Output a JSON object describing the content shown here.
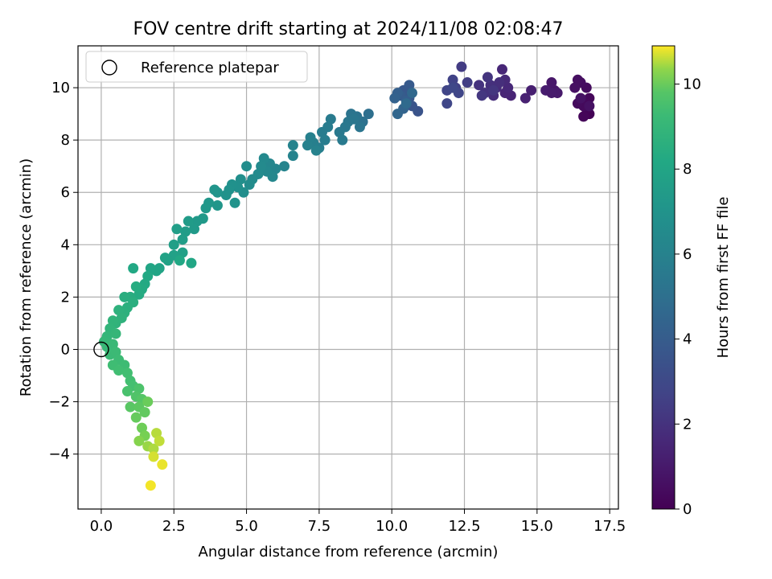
{
  "chart_data": {
    "type": "scatter",
    "title": "FOV centre drift starting at 2024/11/08 02:08:47",
    "xlabel": "Angular distance from reference (arcmin)",
    "ylabel": "Rotation from reference (arcmin)",
    "colorbar_label": "Hours from first FF file",
    "xlim": [
      -0.8,
      17.8
    ],
    "ylim": [
      -6.1,
      11.6
    ],
    "x_ticks": [
      0.0,
      2.5,
      5.0,
      7.5,
      10.0,
      12.5,
      15.0,
      17.5
    ],
    "x_tick_labels": [
      "0.0",
      "2.5",
      "5.0",
      "7.5",
      "10.0",
      "12.5",
      "15.0",
      "17.5"
    ],
    "y_ticks": [
      -4,
      -2,
      0,
      2,
      4,
      6,
      8,
      10
    ],
    "y_tick_labels": [
      "−4",
      "−2",
      "0",
      "2",
      "4",
      "6",
      "8",
      "10"
    ],
    "colorbar_range": [
      0,
      10.9
    ],
    "colorbar_ticks": [
      0,
      2,
      4,
      6,
      8,
      10
    ],
    "colorbar_tick_labels": [
      "0",
      "2",
      "4",
      "6",
      "8",
      "10"
    ],
    "colormap": "viridis",
    "grid": true,
    "legend": {
      "placement": "upper-left",
      "entries": [
        "Reference platepar"
      ]
    },
    "reference_point": {
      "x": 0,
      "y": 0
    },
    "points": [
      [
        16.8,
        9.0,
        0.1
      ],
      [
        16.7,
        9.2,
        0.15
      ],
      [
        16.6,
        8.9,
        0.2
      ],
      [
        16.8,
        9.6,
        0.25
      ],
      [
        16.7,
        9.4,
        0.3
      ],
      [
        16.6,
        9.3,
        0.35
      ],
      [
        16.4,
        9.4,
        0.4
      ],
      [
        16.7,
        10.0,
        0.45
      ],
      [
        16.5,
        10.2,
        0.5
      ],
      [
        16.4,
        10.3,
        0.55
      ],
      [
        16.3,
        10.0,
        0.6
      ],
      [
        16.5,
        9.6,
        0.7
      ],
      [
        16.8,
        9.3,
        0.65
      ],
      [
        15.6,
        9.9,
        0.8
      ],
      [
        15.5,
        10.2,
        0.9
      ],
      [
        15.7,
        9.8,
        1.0
      ],
      [
        15.3,
        9.9,
        1.1
      ],
      [
        15.5,
        9.8,
        1.05
      ],
      [
        14.8,
        9.9,
        1.2
      ],
      [
        14.6,
        9.6,
        1.3
      ],
      [
        14.1,
        9.7,
        1.4
      ],
      [
        13.9,
        9.8,
        1.5
      ],
      [
        14.0,
        10.0,
        1.6
      ],
      [
        13.8,
        10.7,
        1.55
      ],
      [
        13.9,
        10.3,
        1.65
      ],
      [
        13.6,
        10.0,
        1.7
      ],
      [
        13.5,
        9.7,
        1.8
      ],
      [
        13.7,
        10.2,
        1.85
      ],
      [
        13.4,
        10.1,
        1.9
      ],
      [
        13.2,
        9.8,
        2.0
      ],
      [
        13.0,
        10.1,
        2.05
      ],
      [
        13.3,
        10.4,
        2.1
      ],
      [
        13.5,
        9.9,
        2.15
      ],
      [
        13.1,
        9.7,
        2.2
      ],
      [
        12.4,
        10.8,
        2.4
      ],
      [
        12.6,
        10.2,
        2.5
      ],
      [
        12.2,
        10.0,
        2.6
      ],
      [
        12.1,
        10.3,
        2.7
      ],
      [
        11.9,
        9.9,
        2.8
      ],
      [
        12.3,
        9.8,
        2.85
      ],
      [
        11.9,
        9.4,
        2.9
      ],
      [
        12.1,
        10.0,
        2.95
      ],
      [
        10.9,
        9.1,
        3.5
      ],
      [
        10.7,
        9.3,
        3.6
      ],
      [
        10.6,
        9.6,
        3.7
      ],
      [
        10.4,
        9.9,
        3.8
      ],
      [
        10.6,
        10.1,
        3.9
      ],
      [
        10.3,
        9.7,
        4.0
      ],
      [
        10.5,
        9.5,
        4.1
      ],
      [
        10.2,
        9.8,
        4.2
      ],
      [
        10.1,
        9.6,
        4.3
      ],
      [
        10.4,
        9.2,
        4.4
      ],
      [
        10.2,
        9.0,
        4.5
      ],
      [
        10.7,
        9.8,
        4.6
      ],
      [
        10.5,
        9.4,
        4.7
      ],
      [
        9.2,
        9.0,
        5.0
      ],
      [
        9.0,
        8.7,
        5.1
      ],
      [
        8.8,
        8.9,
        5.2
      ],
      [
        8.6,
        9.0,
        5.25
      ],
      [
        8.9,
        8.5,
        5.3
      ],
      [
        8.7,
        8.8,
        5.35
      ],
      [
        8.5,
        8.7,
        5.4
      ],
      [
        8.4,
        8.5,
        5.45
      ],
      [
        8.2,
        8.3,
        5.5
      ],
      [
        8.3,
        8.0,
        5.55
      ],
      [
        7.9,
        8.8,
        5.6
      ],
      [
        7.8,
        8.5,
        5.65
      ],
      [
        7.6,
        8.3,
        5.7
      ],
      [
        7.7,
        8.0,
        5.75
      ],
      [
        7.5,
        7.7,
        5.8
      ],
      [
        7.3,
        7.9,
        5.85
      ],
      [
        7.2,
        8.1,
        5.9
      ],
      [
        7.1,
        7.8,
        5.95
      ],
      [
        7.4,
        7.6,
        6.0
      ],
      [
        6.6,
        7.8,
        6.05
      ],
      [
        6.6,
        7.4,
        6.1
      ],
      [
        6.3,
        7.0,
        6.15
      ],
      [
        6.0,
        6.9,
        6.2
      ],
      [
        5.8,
        7.1,
        6.25
      ],
      [
        5.9,
        6.6,
        6.3
      ],
      [
        5.7,
        6.8,
        6.35
      ],
      [
        5.6,
        7.3,
        6.4
      ],
      [
        5.5,
        7.0,
        6.45
      ],
      [
        5.4,
        6.7,
        6.5
      ],
      [
        5.2,
        6.5,
        6.55
      ],
      [
        5.1,
        6.3,
        6.6
      ],
      [
        5.0,
        7.0,
        6.65
      ],
      [
        4.9,
        6.0,
        6.7
      ],
      [
        4.8,
        6.5,
        6.75
      ],
      [
        4.7,
        6.2,
        6.8
      ],
      [
        4.5,
        6.3,
        6.85
      ],
      [
        4.4,
        6.1,
        6.9
      ],
      [
        4.3,
        5.9,
        6.95
      ],
      [
        4.6,
        5.6,
        7.0
      ],
      [
        4.0,
        6.0,
        7.05
      ],
      [
        3.9,
        6.1,
        7.1
      ],
      [
        4.0,
        5.5,
        7.15
      ],
      [
        3.7,
        5.6,
        7.2
      ],
      [
        3.6,
        5.4,
        7.25
      ],
      [
        3.5,
        5.0,
        7.3
      ],
      [
        3.3,
        4.9,
        7.35
      ],
      [
        3.2,
        4.6,
        7.4
      ],
      [
        3.0,
        4.9,
        7.45
      ],
      [
        2.9,
        4.5,
        7.5
      ],
      [
        2.8,
        4.2,
        7.55
      ],
      [
        2.6,
        4.6,
        7.6
      ],
      [
        2.5,
        4.0,
        7.65
      ],
      [
        2.8,
        3.7,
        7.7
      ],
      [
        2.5,
        3.6,
        7.75
      ],
      [
        2.3,
        3.4,
        7.8
      ],
      [
        2.2,
        3.5,
        7.85
      ],
      [
        2.0,
        3.1,
        7.9
      ],
      [
        1.9,
        3.0,
        7.95
      ],
      [
        1.7,
        3.1,
        8.0
      ],
      [
        3.1,
        3.3,
        8.05
      ],
      [
        2.7,
        3.4,
        8.1
      ],
      [
        1.1,
        3.1,
        8.15
      ],
      [
        1.6,
        2.8,
        8.2
      ],
      [
        1.5,
        2.5,
        8.25
      ],
      [
        1.4,
        2.3,
        8.3
      ],
      [
        1.3,
        2.1,
        8.35
      ],
      [
        1.2,
        2.4,
        8.4
      ],
      [
        1.0,
        2.0,
        8.45
      ],
      [
        0.8,
        2.0,
        8.5
      ],
      [
        1.1,
        1.8,
        8.55
      ],
      [
        0.9,
        1.6,
        8.6
      ],
      [
        0.8,
        1.4,
        8.65
      ],
      [
        0.6,
        1.5,
        8.7
      ],
      [
        0.7,
        1.2,
        8.75
      ],
      [
        0.5,
        1.0,
        8.8
      ],
      [
        0.4,
        1.1,
        8.85
      ],
      [
        0.3,
        0.8,
        8.9
      ],
      [
        0.2,
        0.5,
        8.95
      ],
      [
        0.5,
        0.6,
        9.0
      ],
      [
        0.1,
        0.3,
        9.05
      ],
      [
        0.2,
        0.1,
        9.1
      ],
      [
        0.4,
        0.2,
        9.15
      ],
      [
        0.3,
        -0.2,
        9.2
      ],
      [
        0.5,
        -0.1,
        9.25
      ],
      [
        0.6,
        -0.4,
        9.3
      ],
      [
        0.8,
        -0.6,
        9.35
      ],
      [
        0.4,
        -0.6,
        9.4
      ],
      [
        0.6,
        -0.8,
        9.45
      ],
      [
        0.9,
        -0.9,
        9.5
      ],
      [
        1.0,
        -1.2,
        9.55
      ],
      [
        1.1,
        -1.4,
        9.6
      ],
      [
        0.9,
        -1.6,
        9.65
      ],
      [
        1.3,
        -1.5,
        9.7
      ],
      [
        1.2,
        -1.8,
        9.75
      ],
      [
        1.4,
        -1.9,
        9.8
      ],
      [
        1.0,
        -2.2,
        9.85
      ],
      [
        1.3,
        -2.2,
        9.9
      ],
      [
        1.5,
        -2.4,
        9.95
      ],
      [
        1.2,
        -2.6,
        10.0
      ],
      [
        1.6,
        -2.0,
        10.05
      ],
      [
        1.4,
        -3.0,
        10.1
      ],
      [
        1.5,
        -3.3,
        10.2
      ],
      [
        1.3,
        -3.5,
        10.3
      ],
      [
        1.6,
        -3.7,
        10.4
      ],
      [
        1.8,
        -3.8,
        10.5
      ],
      [
        1.9,
        -3.2,
        10.55
      ],
      [
        2.0,
        -3.5,
        10.6
      ],
      [
        1.8,
        -4.1,
        10.7
      ],
      [
        2.1,
        -4.4,
        10.8
      ],
      [
        1.7,
        -5.2,
        10.85
      ]
    ]
  }
}
